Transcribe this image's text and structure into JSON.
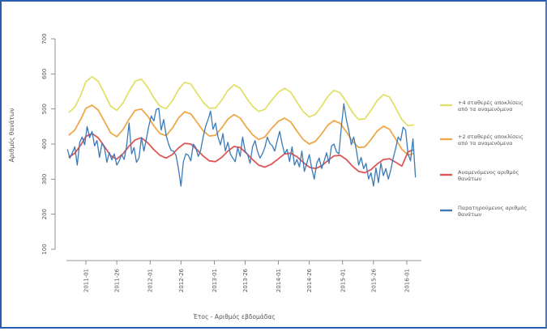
{
  "chart_data": {
    "type": "line",
    "xlabel": "Έτος - Αριθμός εβδομάδας",
    "ylabel": "Αριθμός θανάτων",
    "ylim": [
      100,
      700
    ],
    "yticks": [
      100,
      200,
      300,
      400,
      500,
      600,
      700
    ],
    "xticks": [
      "2011-01",
      "2011-26",
      "2012-01",
      "2012-26",
      "2013-01",
      "2013-26",
      "2014-01",
      "2014-26",
      "2015-01",
      "2015-26",
      "2016-01"
    ],
    "grid": false,
    "legend_position": "right",
    "series": [
      {
        "name": "+4 σταθερές αποκλίσεις από τα αναμενόμενα",
        "color": "#e2e06a",
        "x": [
          "2010-39",
          "2010-44",
          "2010-49",
          "2011-01",
          "2011-06",
          "2011-11",
          "2011-16",
          "2011-21",
          "2011-26",
          "2011-31",
          "2011-36",
          "2011-41",
          "2011-46",
          "2011-51",
          "2012-04",
          "2012-09",
          "2012-14",
          "2012-19",
          "2012-24",
          "2012-29",
          "2012-34",
          "2012-39",
          "2012-44",
          "2012-49",
          "2013-02",
          "2013-07",
          "2013-12",
          "2013-17",
          "2013-22",
          "2013-27",
          "2013-32",
          "2013-37",
          "2013-42",
          "2013-47",
          "2014-01",
          "2014-06",
          "2014-11",
          "2014-16",
          "2014-21",
          "2014-26",
          "2014-31",
          "2014-36",
          "2014-41",
          "2014-46",
          "2014-51",
          "2015-04",
          "2015-09",
          "2015-14",
          "2015-19",
          "2015-24",
          "2015-29",
          "2015-34",
          "2015-39",
          "2015-44",
          "2015-49",
          "2016-02",
          "2016-07"
        ],
        "values": [
          490,
          505,
          541,
          578,
          592,
          579,
          545,
          508,
          496,
          517,
          550,
          579,
          585,
          563,
          532,
          508,
          501,
          523,
          555,
          576,
          571,
          545,
          519,
          502,
          503,
          525,
          553,
          569,
          559,
          532,
          508,
          493,
          499,
          523,
          548,
          559,
          548,
          520,
          493,
          477,
          485,
          508,
          536,
          553,
          546,
          520,
          490,
          470,
          472,
          496,
          524,
          541,
          534,
          503,
          470,
          452,
          455
        ]
      },
      {
        "name": "+2 σταθερές αποκλίσεις από τα αναμενόμενα",
        "color": "#eea84a",
        "x": [
          "2010-39",
          "2010-44",
          "2010-49",
          "2011-01",
          "2011-06",
          "2011-11",
          "2011-16",
          "2011-21",
          "2011-26",
          "2011-31",
          "2011-36",
          "2011-41",
          "2011-46",
          "2011-51",
          "2012-04",
          "2012-09",
          "2012-14",
          "2012-19",
          "2012-24",
          "2012-29",
          "2012-34",
          "2012-39",
          "2012-44",
          "2012-49",
          "2013-02",
          "2013-07",
          "2013-12",
          "2013-17",
          "2013-22",
          "2013-27",
          "2013-32",
          "2013-37",
          "2013-42",
          "2013-47",
          "2014-01",
          "2014-06",
          "2014-11",
          "2014-16",
          "2014-21",
          "2014-26",
          "2014-31",
          "2014-36",
          "2014-41",
          "2014-46",
          "2014-51",
          "2015-04",
          "2015-09",
          "2015-14",
          "2015-19",
          "2015-24",
          "2015-29",
          "2015-34",
          "2015-39",
          "2015-44",
          "2015-49",
          "2016-02",
          "2016-07"
        ],
        "values": [
          425,
          440,
          472,
          502,
          511,
          497,
          465,
          432,
          421,
          441,
          471,
          496,
          500,
          480,
          452,
          430,
          424,
          445,
          474,
          492,
          486,
          462,
          438,
          423,
          425,
          446,
          471,
          484,
          474,
          449,
          427,
          413,
          420,
          443,
          465,
          474,
          463,
          437,
          413,
          400,
          408,
          429,
          454,
          467,
          459,
          435,
          408,
          390,
          392,
          413,
          437,
          451,
          442,
          414,
          385,
          369,
          373
        ]
      },
      {
        "name": "Αναμενόμενος αριθμός θανάτων",
        "color": "#e05656",
        "x": [
          "2010-39",
          "2010-44",
          "2010-49",
          "2011-01",
          "2011-06",
          "2011-11",
          "2011-16",
          "2011-21",
          "2011-26",
          "2011-31",
          "2011-36",
          "2011-41",
          "2011-46",
          "2011-51",
          "2012-04",
          "2012-09",
          "2012-14",
          "2012-19",
          "2012-24",
          "2012-29",
          "2012-34",
          "2012-39",
          "2012-44",
          "2012-49",
          "2013-02",
          "2013-07",
          "2013-12",
          "2013-17",
          "2013-22",
          "2013-27",
          "2013-32",
          "2013-37",
          "2013-42",
          "2013-47",
          "2014-01",
          "2014-06",
          "2014-11",
          "2014-16",
          "2014-21",
          "2014-26",
          "2014-31",
          "2014-36",
          "2014-41",
          "2014-46",
          "2014-51",
          "2015-04",
          "2015-09",
          "2015-14",
          "2015-19",
          "2015-24",
          "2015-29",
          "2015-34",
          "2015-39",
          "2015-44",
          "2015-49",
          "2016-02",
          "2016-07"
        ],
        "values": [
          362,
          374,
          398,
          422,
          430,
          418,
          393,
          367,
          357,
          372,
          394,
          412,
          418,
          404,
          384,
          368,
          360,
          370,
          389,
          402,
          400,
          384,
          366,
          352,
          350,
          362,
          380,
          393,
          390,
          374,
          356,
          340,
          334,
          342,
          358,
          372,
          374,
          364,
          348,
          334,
          330,
          338,
          353,
          366,
          368,
          356,
          337,
          322,
          318,
          327,
          343,
          356,
          358,
          348,
          337,
          378,
          384
        ]
      },
      {
        "name": "Παρατηρούμενος αριθμός θανάτων",
        "color": "#3c7ab6",
        "x": [
          "2010-38",
          "2010-40",
          "2010-42",
          "2010-44",
          "2010-46",
          "2010-48",
          "2010-50",
          "2010-52",
          "2011-02",
          "2011-04",
          "2011-06",
          "2011-08",
          "2011-10",
          "2011-12",
          "2011-14",
          "2011-16",
          "2011-18",
          "2011-20",
          "2011-22",
          "2011-24",
          "2011-26",
          "2011-28",
          "2011-30",
          "2011-32",
          "2011-34",
          "2011-36",
          "2011-38",
          "2011-40",
          "2011-42",
          "2011-44",
          "2011-46",
          "2011-48",
          "2011-50",
          "2011-52",
          "2012-02",
          "2012-04",
          "2012-06",
          "2012-08",
          "2012-10",
          "2012-12",
          "2012-14",
          "2012-16",
          "2012-18",
          "2012-20",
          "2012-22",
          "2012-24",
          "2012-26",
          "2012-28",
          "2012-30",
          "2012-32",
          "2012-34",
          "2012-36",
          "2012-38",
          "2012-40",
          "2012-42",
          "2012-44",
          "2012-46",
          "2012-48",
          "2012-50",
          "2012-52",
          "2013-02",
          "2013-04",
          "2013-06",
          "2013-08",
          "2013-10",
          "2013-12",
          "2013-14",
          "2013-16",
          "2013-18",
          "2013-20",
          "2013-22",
          "2013-24",
          "2013-26",
          "2013-28",
          "2013-30",
          "2013-32",
          "2013-34",
          "2013-36",
          "2013-38",
          "2013-40",
          "2013-42",
          "2013-44",
          "2013-46",
          "2013-48",
          "2013-50",
          "2013-52",
          "2014-02",
          "2014-04",
          "2014-06",
          "2014-08",
          "2014-10",
          "2014-12",
          "2014-14",
          "2014-16",
          "2014-18",
          "2014-20",
          "2014-22",
          "2014-24",
          "2014-26",
          "2014-28",
          "2014-30",
          "2014-32",
          "2014-34",
          "2014-36",
          "2014-38",
          "2014-40",
          "2014-42",
          "2014-44",
          "2014-46",
          "2014-48",
          "2014-50",
          "2014-52",
          "2015-02",
          "2015-04",
          "2015-06",
          "2015-08",
          "2015-10",
          "2015-12",
          "2015-14",
          "2015-16",
          "2015-18",
          "2015-20",
          "2015-22",
          "2015-24",
          "2015-26",
          "2015-28",
          "2015-30",
          "2015-32",
          "2015-34",
          "2015-36",
          "2015-38",
          "2015-40",
          "2015-42",
          "2015-44",
          "2015-46",
          "2015-48",
          "2015-50",
          "2015-52",
          "2016-02",
          "2016-04",
          "2016-06",
          "2016-08"
        ],
        "values": [
          385,
          360,
          375,
          392,
          340,
          405,
          420,
          398,
          450,
          418,
          436,
          395,
          410,
          362,
          402,
          390,
          348,
          376,
          355,
          372,
          340,
          352,
          370,
          356,
          395,
          460,
          372,
          390,
          348,
          360,
          418,
          380,
          415,
          452,
          480,
          466,
          498,
          502,
          440,
          470,
          425,
          400,
          382,
          380,
          368,
          330,
          280,
          350,
          372,
          368,
          352,
          400,
          390,
          365,
          382,
          420,
          450,
          470,
          494,
          442,
          460,
          420,
          398,
          430,
          380,
          405,
          372,
          360,
          350,
          390,
          365,
          420,
          380,
          370,
          345,
          392,
          410,
          380,
          360,
          372,
          390,
          420,
          402,
          395,
          380,
          410,
          436,
          400,
          372,
          385,
          350,
          392,
          340,
          356,
          335,
          380,
          322,
          345,
          370,
          330,
          300,
          345,
          360,
          330,
          352,
          375,
          345,
          395,
          400,
          378,
          372,
          450,
          515,
          470,
          438,
          398,
          420,
          385,
          340,
          362,
          330,
          345,
          300,
          318,
          280,
          332,
          290,
          346,
          310,
          330,
          300,
          326,
          360,
          388,
          420,
          410,
          448,
          440,
          372,
          352,
          415,
          305
        ]
      }
    ]
  }
}
